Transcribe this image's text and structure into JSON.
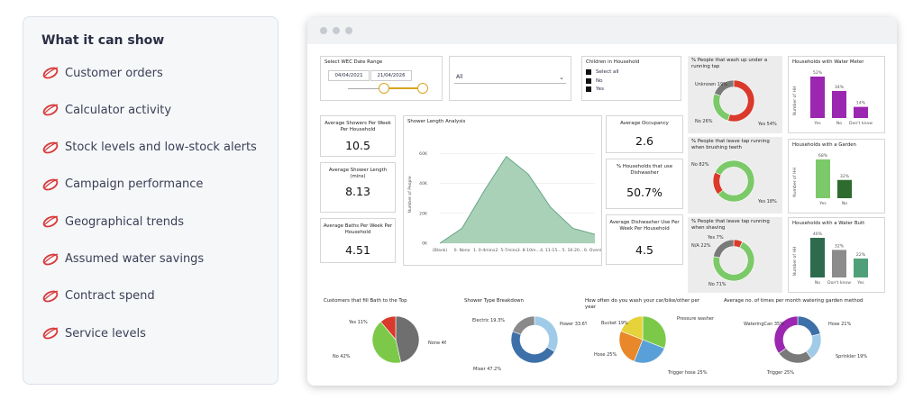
{
  "features": {
    "title": "What it can show",
    "items": [
      "Customer orders",
      "Calculator activity",
      "Stock levels and low-stock alerts",
      "Campaign performance",
      "Geographical trends",
      "Assumed water savings",
      "Contract spend",
      "Service levels"
    ],
    "accent": "#d93a3a"
  },
  "dashboard": {
    "date_filter": {
      "title": "Select WEC Date Range",
      "start": "04/04/2021",
      "end": "21/04/2026",
      "slider_color": "#d9a520"
    },
    "dropdown": {
      "value": "All"
    },
    "children_filter": {
      "title": "Children in Household",
      "options": [
        "Select all",
        "No",
        "Yes"
      ]
    },
    "kpis": {
      "showers": {
        "title": "Average Showers Per Week Per Household",
        "value": "10.5"
      },
      "length": {
        "title": "Average Shower Length (mins)",
        "value": "8.13"
      },
      "baths": {
        "title": "Average Baths Per Week Per Household",
        "value": "4.51"
      },
      "occupancy": {
        "title": "Average Occupancy",
        "value": "2.6"
      },
      "dishwasher_pct": {
        "title": "% Households that use Dishwasher",
        "value": "50.7%"
      },
      "dishwasher_use": {
        "title": "Average Dishwasher Use Per Week Per Household",
        "value": "4.5"
      }
    }
  },
  "chart_data": [
    {
      "type": "area",
      "title": "Shower Length Analysis",
      "ylabel": "Number of People",
      "categories": [
        "(Blank)",
        "0. None",
        "1. 0-4mins",
        "2. 5-7mins",
        "3. 8-10m...",
        "4. 11-15...",
        "5. 16-20...",
        "6. Overd..."
      ],
      "y_ticks": [
        "0K",
        "20K",
        "40K",
        "60K"
      ],
      "ylim": [
        0,
        65000
      ],
      "values": [
        0,
        10000,
        35000,
        58000,
        46000,
        24000,
        10000,
        6000
      ],
      "color": "#5ea27f"
    },
    {
      "type": "pie",
      "title": "% People that wash up under a running tap",
      "donut": true,
      "slices": [
        {
          "label": "Yes 54%",
          "value": 54,
          "color": "#d93a2b"
        },
        {
          "label": "No 26%",
          "value": 26,
          "color": "#7cc96a"
        },
        {
          "label": "Unknown 19%",
          "value": 19,
          "color": "#7a7a7a"
        }
      ]
    },
    {
      "type": "pie",
      "title": "% People that leave tap running when brushing teeth",
      "donut": true,
      "slices": [
        {
          "label": "No 82%",
          "value": 82,
          "color": "#7cc96a"
        },
        {
          "label": "Yes 18%",
          "value": 18,
          "color": "#d93a2b"
        }
      ]
    },
    {
      "type": "pie",
      "title": "% People that leave tap running when shaving",
      "donut": true,
      "slices": [
        {
          "label": "Yes 7%",
          "value": 7,
          "color": "#d93a2b"
        },
        {
          "label": "No 71%",
          "value": 71,
          "color": "#7cc96a"
        },
        {
          "label": "N/A 22%",
          "value": 22,
          "color": "#7a7a7a"
        }
      ]
    },
    {
      "type": "bar",
      "title": "Households with Water Meter",
      "ylabel": "Number of HH",
      "categories": [
        "Yes",
        "No",
        "Don't know"
      ],
      "values": [
        52,
        34,
        14
      ],
      "labels": [
        "52%",
        "34%",
        "14%"
      ],
      "colors": [
        "#9b27b0",
        "#9b27b0",
        "#9b27b0"
      ]
    },
    {
      "type": "bar",
      "title": "Households with a Garden",
      "ylabel": "Number of HH",
      "categories": [
        "Yes",
        "No"
      ],
      "values": [
        68,
        32
      ],
      "labels": [
        "68%",
        "32%"
      ],
      "colors": [
        "#7cc96a",
        "#2e6b2e"
      ]
    },
    {
      "type": "bar",
      "title": "Households with a Water Butt",
      "ylabel": "Number of HH",
      "categories": [
        "No",
        "Don't know",
        "Yes"
      ],
      "values": [
        46,
        32,
        22
      ],
      "labels": [
        "46%",
        "32%",
        "22%"
      ],
      "colors": [
        "#2e6b4e",
        "#8c8c8c",
        "#4fa07a"
      ]
    },
    {
      "type": "pie",
      "title": "Customers that fill Bath to the Top",
      "slices": [
        {
          "label": "None 46%",
          "value": 46,
          "color": "#6f6f6f"
        },
        {
          "label": "No 42%",
          "value": 42,
          "color": "#7cc94a"
        },
        {
          "label": "Yes 11%",
          "value": 11,
          "color": "#d93a2b"
        }
      ]
    },
    {
      "type": "pie",
      "title": "Shower Type Breakdown",
      "donut": true,
      "slices": [
        {
          "label": "Power 33.6%",
          "value": 33.6,
          "color": "#9fcbe8"
        },
        {
          "label": "Mixer 47.2%",
          "value": 47.2,
          "color": "#3d6fa8"
        },
        {
          "label": "Electric 19.3%",
          "value": 19.3,
          "color": "#8a8a8a"
        }
      ]
    },
    {
      "type": "pie",
      "title": "How often do you wash your car/bike/other per year",
      "slices": [
        {
          "label": "Pressure washer 31%",
          "value": 31,
          "color": "#7cc94a"
        },
        {
          "label": "Trigger hose 25%",
          "value": 25,
          "color": "#5aa0d8"
        },
        {
          "label": "Hose 25%",
          "value": 25,
          "color": "#e8882a"
        },
        {
          "label": "Bucket 19%",
          "value": 19,
          "color": "#e6d23a"
        }
      ]
    },
    {
      "type": "pie",
      "title": "Average no. of times per month watering garden method",
      "donut": true,
      "slices": [
        {
          "label": "Hose 21%",
          "value": 21,
          "color": "#3d6fa8"
        },
        {
          "label": "Sprinkler 19%",
          "value": 19,
          "color": "#9fcbe8"
        },
        {
          "label": "Trigger 25%",
          "value": 25,
          "color": "#7a7a7a"
        },
        {
          "label": "WateringCan 35%",
          "value": 35,
          "color": "#9b27b0"
        }
      ]
    }
  ]
}
